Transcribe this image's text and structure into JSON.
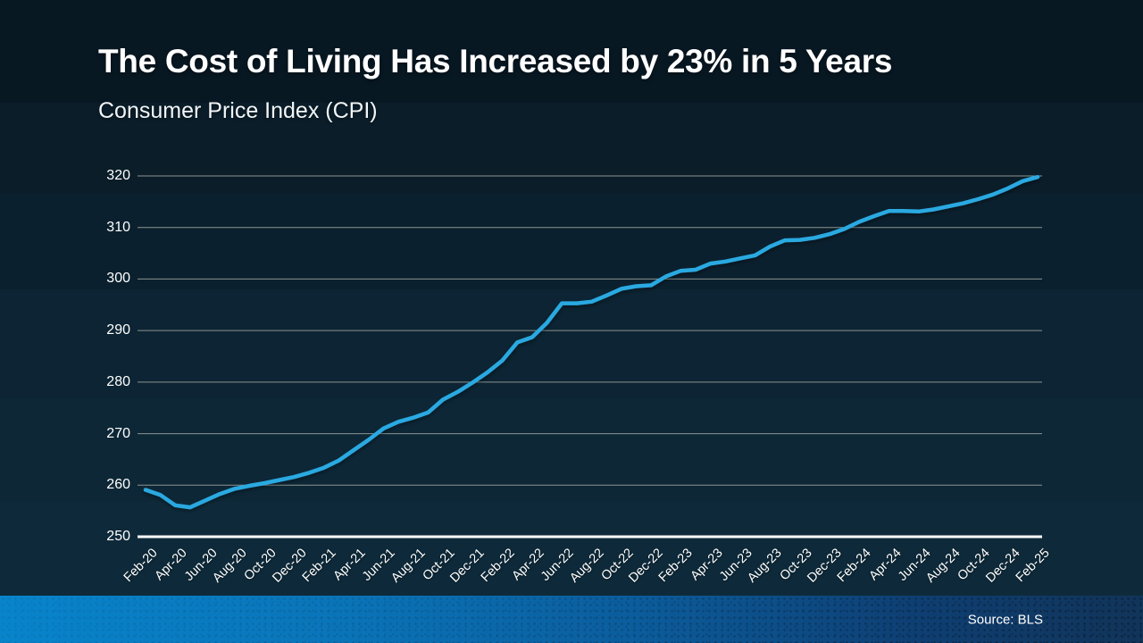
{
  "header": {
    "title": "The Cost of Living Has Increased by 23% in 5 Years",
    "subtitle": "Consumer Price Index (CPI)"
  },
  "footer": {
    "source_label": "Source: BLS"
  },
  "colors": {
    "line": "#29a9e1",
    "grid": "#8d9590",
    "axis": "#ffffff",
    "text": "#ffffff",
    "footer_blue_left": "#0884cb",
    "footer_blue_right": "#113459",
    "background_top": "#081823",
    "background_bottom": "#0f2c3e"
  },
  "chart_data": {
    "type": "line",
    "title": "The Cost of Living Has Increased by 23% in 5 Years",
    "subtitle": "Consumer Price Index (CPI)",
    "xlabel": "",
    "ylabel": "",
    "ylim": [
      250,
      320
    ],
    "yticks": [
      250,
      260,
      270,
      280,
      290,
      300,
      310,
      320
    ],
    "grid": true,
    "legend": false,
    "series_name": "CPI",
    "x": [
      "Feb-20",
      "Mar-20",
      "Apr-20",
      "May-20",
      "Jun-20",
      "Jul-20",
      "Aug-20",
      "Sep-20",
      "Oct-20",
      "Nov-20",
      "Dec-20",
      "Jan-21",
      "Feb-21",
      "Mar-21",
      "Apr-21",
      "May-21",
      "Jun-21",
      "Jul-21",
      "Aug-21",
      "Sep-21",
      "Oct-21",
      "Nov-21",
      "Dec-21",
      "Jan-22",
      "Feb-22",
      "Mar-22",
      "Apr-22",
      "May-22",
      "Jun-22",
      "Jul-22",
      "Aug-22",
      "Sep-22",
      "Oct-22",
      "Nov-22",
      "Dec-22",
      "Jan-23",
      "Feb-23",
      "Mar-23",
      "Apr-23",
      "May-23",
      "Jun-23",
      "Jul-23",
      "Aug-23",
      "Sep-23",
      "Oct-23",
      "Nov-23",
      "Dec-23",
      "Jan-24",
      "Feb-24",
      "Mar-24",
      "Apr-24",
      "May-24",
      "Jun-24",
      "Jul-24",
      "Aug-24",
      "Sep-24",
      "Oct-24",
      "Nov-24",
      "Dec-24",
      "Jan-25",
      "Feb-25"
    ],
    "values": [
      259.1,
      258.1,
      256.1,
      255.7,
      257.0,
      258.3,
      259.3,
      259.9,
      260.4,
      261.0,
      261.6,
      262.4,
      263.4,
      264.8,
      266.8,
      268.8,
      271.0,
      272.3,
      273.1,
      274.1,
      276.6,
      278.1,
      279.9,
      281.9,
      284.2,
      287.7,
      288.7,
      291.5,
      295.3,
      295.3,
      295.6,
      296.8,
      298.1,
      298.6,
      298.8,
      300.5,
      301.6,
      301.8,
      303.0,
      303.4,
      304.0,
      304.6,
      306.3,
      307.5,
      307.6,
      308.0,
      308.7,
      309.7,
      311.1,
      312.2,
      313.2,
      313.2,
      313.1,
      313.5,
      314.1,
      314.7,
      315.5,
      316.4,
      317.6,
      319.0,
      319.8
    ],
    "xtick_labels": [
      "Feb-20",
      "Apr-20",
      "Jun-20",
      "Aug-20",
      "Oct-20",
      "Dec-20",
      "Feb-21",
      "Apr-21",
      "Jun-21",
      "Aug-21",
      "Oct-21",
      "Dec-21",
      "Feb-22",
      "Apr-22",
      "Jun-22",
      "Aug-22",
      "Oct-22",
      "Dec-22",
      "Feb-23",
      "Apr-23",
      "Jun-23",
      "Aug-23",
      "Oct-23",
      "Dec-23",
      "Feb-24",
      "Apr-24",
      "Jun-24",
      "Aug-24",
      "Oct-24",
      "Dec-24",
      "Feb-25"
    ],
    "xtick_every_n_months": 2
  }
}
